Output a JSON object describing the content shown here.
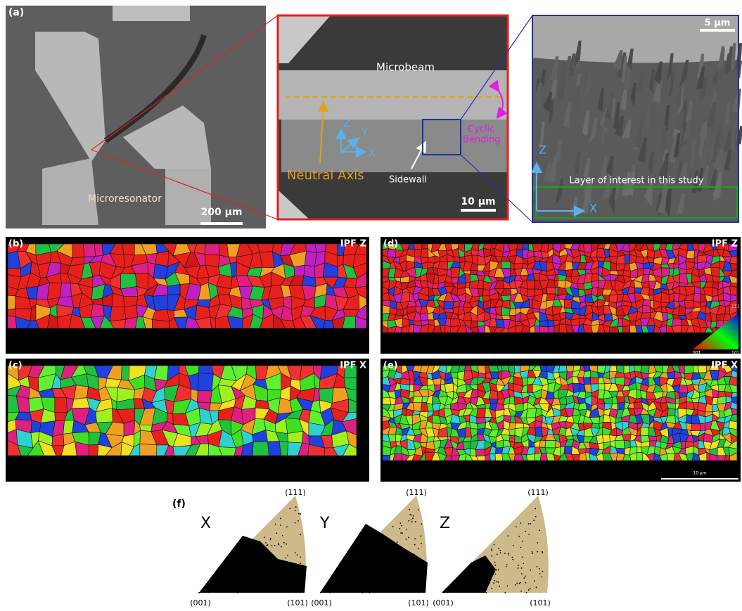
{
  "panel_a": {
    "label": "(a)",
    "microresonator": "Microresonator",
    "scale_bar": "200 µm"
  },
  "panel_a_zoom": {
    "microbeam": "Microbeam",
    "neutral_axis": "Neutral Axis",
    "axes": [
      "Z",
      "Y",
      "X"
    ],
    "sidewall": "Sidewall",
    "cyclic_bending": [
      "Cyclic",
      "Bending"
    ],
    "scale_bar": "10 µm"
  },
  "panel_a_sem": {
    "scale_bar": "5 µm",
    "axes": [
      "Z",
      "X"
    ],
    "layer_label": "Layer of interest in this study"
  },
  "ipf_maps": [
    {
      "label": "(b)",
      "title": "IPF Z"
    },
    {
      "label": "(c)",
      "title": "IPF X"
    },
    {
      "label": "(d)",
      "title": "IPF Z"
    },
    {
      "label": "(e)",
      "title": "IPF X"
    }
  ],
  "color_key": {
    "top": "111",
    "left": "001",
    "right": "101"
  },
  "map_scale_bar": "10 µm",
  "panel_f": {
    "label": "(f)",
    "poles": [
      {
        "axis": "X",
        "top": "(111)",
        "left": "(001)",
        "right": "(101)"
      },
      {
        "axis": "Y",
        "top": "(111)",
        "left": "(001)",
        "right": "(101)"
      },
      {
        "axis": "Z",
        "top": "(111)",
        "left": "(001)",
        "right": "(101)"
      }
    ]
  }
}
